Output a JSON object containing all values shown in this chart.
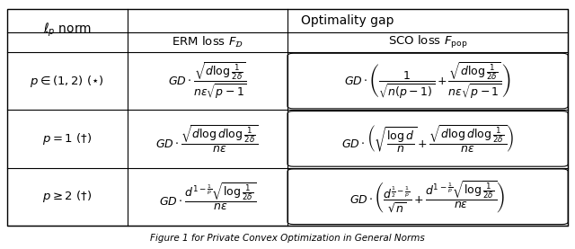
{
  "title": "Optimality gap",
  "col1_header": "$\\ell_p$ norm",
  "col2_header": "ERM loss $F_{\\mathcal{D}}$",
  "col3_header": "SCO loss $F_{\\mathrm{pop}}$",
  "rows": [
    {
      "norm": "$p \\in (1,2)$ $(\\star)$",
      "erm": "$GD \\cdot \\dfrac{\\sqrt{d \\log \\frac{1}{2\\delta}}}{n\\epsilon\\sqrt{p-1}}$",
      "sco": "$GD \\cdot \\left(\\dfrac{1}{\\sqrt{n(p-1)}} + \\dfrac{\\sqrt{d \\log \\frac{1}{2\\delta}}}{n\\epsilon\\sqrt{p-1}}\\right)$"
    },
    {
      "norm": "$p = 1$ $(\\dagger)$",
      "erm": "$GD \\cdot \\dfrac{\\sqrt{d \\log d \\log \\frac{1}{2\\delta}}}{n\\epsilon}$",
      "sco": "$GD \\cdot \\left(\\sqrt{\\dfrac{\\log d}{n}} + \\dfrac{\\sqrt{d \\log d \\log \\frac{1}{2\\delta}}}{n\\epsilon}\\right)$"
    },
    {
      "norm": "$p \\geq 2$ $(\\dagger)$",
      "erm": "$GD \\cdot \\dfrac{d^{1-\\frac{1}{p}} \\sqrt{\\log \\frac{1}{2\\delta}}}{n\\epsilon}$",
      "sco": "$GD \\cdot \\left(\\dfrac{d^{\\frac{1}{2}-\\frac{1}{p}}}{\\sqrt{n}} + \\dfrac{d^{1-\\frac{1}{p}} \\sqrt{\\log \\frac{1}{2\\delta}}}{n\\epsilon}\\right)$"
    }
  ],
  "figsize": [
    6.4,
    2.77
  ],
  "dpi": 100,
  "background_color": "#ffffff",
  "font_size": 9.5,
  "header_font_size": 10,
  "caption": "Figure 1 for Private Convex Optimization in General Norms"
}
